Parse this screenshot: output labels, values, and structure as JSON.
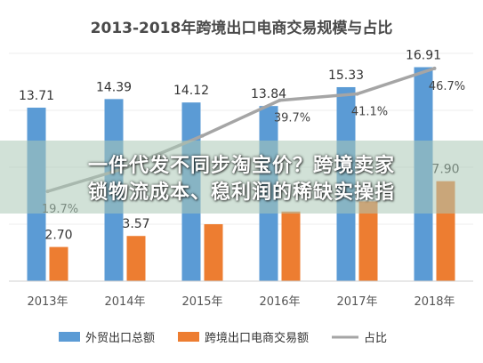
{
  "chart_data": {
    "type": "bar",
    "title": "2013-2018年跨境出口电商交易规模与占比",
    "categories": [
      "2013年",
      "2014年",
      "2015年",
      "2016年",
      "2017年",
      "2018年"
    ],
    "series": [
      {
        "name": "外贸出口总额",
        "type": "bar",
        "color": "#5b9bd5",
        "values": [
          13.71,
          14.39,
          14.12,
          13.84,
          15.33,
          16.91
        ]
      },
      {
        "name": "跨境出口电商交易额",
        "type": "bar",
        "color": "#ed7d31",
        "values": [
          2.7,
          3.57,
          4.5,
          5.5,
          6.3,
          7.9
        ]
      },
      {
        "name": "占比",
        "type": "line",
        "color": "#a5a5a5",
        "values": [
          19.7,
          24.8,
          31.9,
          39.7,
          41.1,
          46.7
        ]
      }
    ],
    "bar_labels": {
      "外贸出口总额": [
        "13.71",
        "14.39",
        "14.12",
        "13.84",
        "15.33",
        "16.91"
      ],
      "跨境出口电商交易额": [
        "2.70",
        "3.57",
        "",
        "",
        "",
        "7.90"
      ]
    },
    "line_labels": [
      "19.7%",
      "",
      "",
      "39.7%",
      "41.1%",
      "46.7%"
    ],
    "ylim": [
      0,
      18
    ],
    "ylim_line": [
      0,
      50
    ],
    "grid": true,
    "legend_position": "bottom"
  },
  "overlay": {
    "text": "一件代发不同步淘宝价？跨境卖家\n锁物流成本、稳利润的稀缺实操指"
  }
}
